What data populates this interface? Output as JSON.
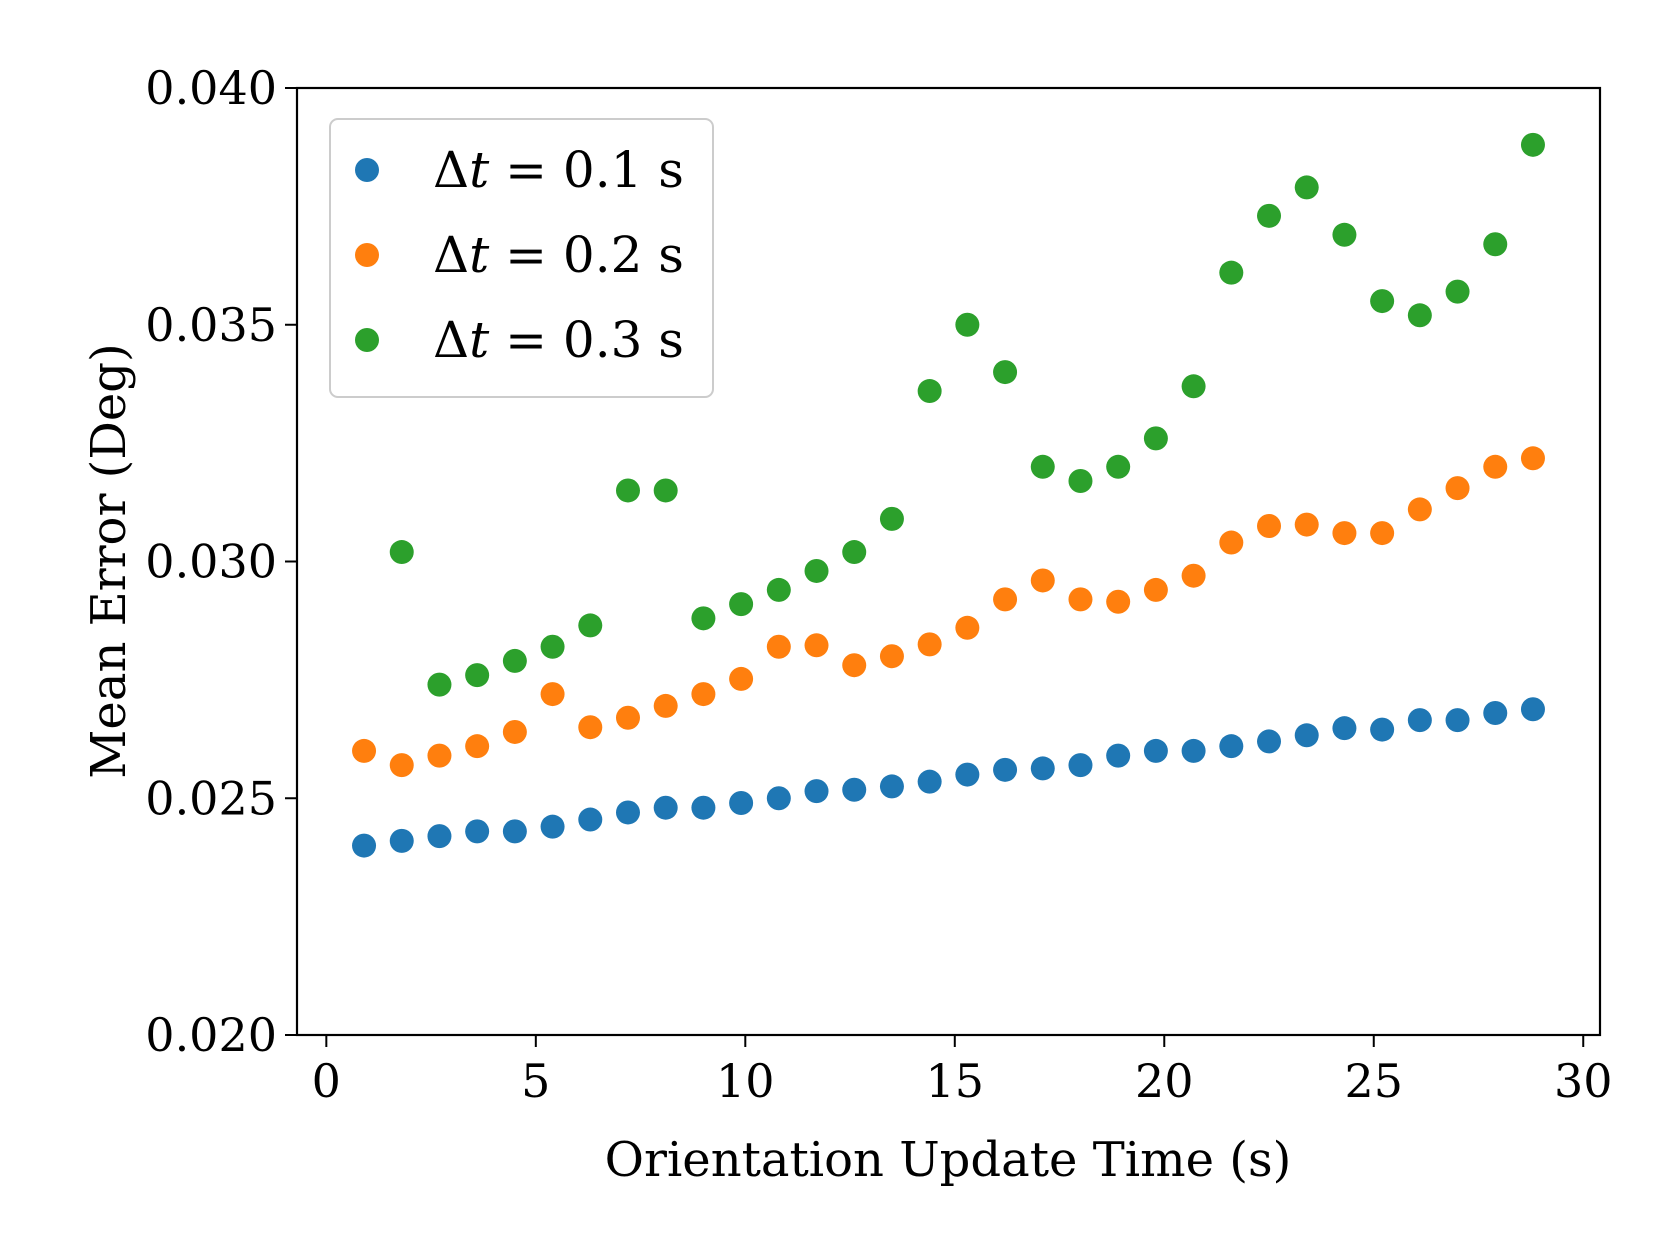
{
  "chart_data": {
    "type": "scatter",
    "title": "",
    "xlabel": "Orientation Update Time (s)",
    "ylabel": "Mean Error (Deg)",
    "xlim": [
      -0.7,
      30.4
    ],
    "ylim": [
      0.02,
      0.04
    ],
    "xticks": [
      0,
      5,
      10,
      15,
      20,
      25,
      30
    ],
    "xtick_labels": [
      "0",
      "5",
      "10",
      "15",
      "20",
      "25",
      "30"
    ],
    "yticks": [
      0.02,
      0.025,
      0.03,
      0.035,
      0.04
    ],
    "ytick_labels": [
      "0.020",
      "0.025",
      "0.030",
      "0.035",
      "0.040"
    ],
    "grid": false,
    "legend_position": "top-left",
    "x": [
      0.9,
      1.8,
      2.7,
      3.6,
      4.5,
      5.4,
      6.3,
      7.2,
      8.1,
      9.0,
      9.9,
      10.8,
      11.7,
      12.6,
      13.5,
      14.4,
      15.3,
      16.2,
      17.1,
      18.0,
      18.9,
      19.8,
      20.7,
      21.6,
      22.5,
      23.4,
      24.3,
      25.2,
      26.1,
      27.0,
      27.9,
      28.8
    ],
    "series": [
      {
        "name": "Δt = 0.1 s",
        "label_prefix": "Δ",
        "label_var": "t",
        "label_suffix": " = 0.1 s",
        "color": "#1f77b4",
        "y": [
          0.024,
          0.0241,
          0.0242,
          0.0243,
          0.0243,
          0.0244,
          0.02455,
          0.0247,
          0.0248,
          0.0248,
          0.0249,
          0.025,
          0.02515,
          0.02518,
          0.02525,
          0.02535,
          0.0255,
          0.0256,
          0.02563,
          0.0257,
          0.0259,
          0.026,
          0.026,
          0.0261,
          0.0262,
          0.02633,
          0.02648,
          0.02645,
          0.02665,
          0.02665,
          0.0268,
          0.02688
        ]
      },
      {
        "name": "Δt = 0.2 s",
        "label_prefix": "Δ",
        "label_var": "t",
        "label_suffix": " = 0.2 s",
        "color": "#ff7f0e",
        "y": [
          0.026,
          0.0257,
          0.0259,
          0.0261,
          0.0264,
          0.0272,
          0.0265,
          0.0267,
          0.02695,
          0.0272,
          0.02752,
          0.0282,
          0.02823,
          0.02781,
          0.028,
          0.02825,
          0.0286,
          0.0292,
          0.0296,
          0.0292,
          0.02915,
          0.0294,
          0.0297,
          0.0304,
          0.03075,
          0.03078,
          0.0306,
          0.0306,
          0.0311,
          0.03155,
          0.032,
          0.03218
        ]
      },
      {
        "name": "Δt = 0.3 s",
        "label_prefix": "Δ",
        "label_var": "t",
        "label_suffix": " = 0.3 s",
        "color": "#2ca02c",
        "y": [
          null,
          0.0302,
          0.0274,
          0.0276,
          0.0279,
          0.0282,
          0.02865,
          0.0315,
          0.0315,
          0.0288,
          0.0291,
          0.0294,
          0.0298,
          0.0302,
          0.0309,
          0.0336,
          0.035,
          0.034,
          0.032,
          0.0317,
          0.032,
          0.0326,
          0.0337,
          0.0361,
          0.0373,
          0.0379,
          0.0369,
          0.0355,
          0.0352,
          0.0357,
          0.0367,
          0.0388
        ]
      }
    ]
  }
}
